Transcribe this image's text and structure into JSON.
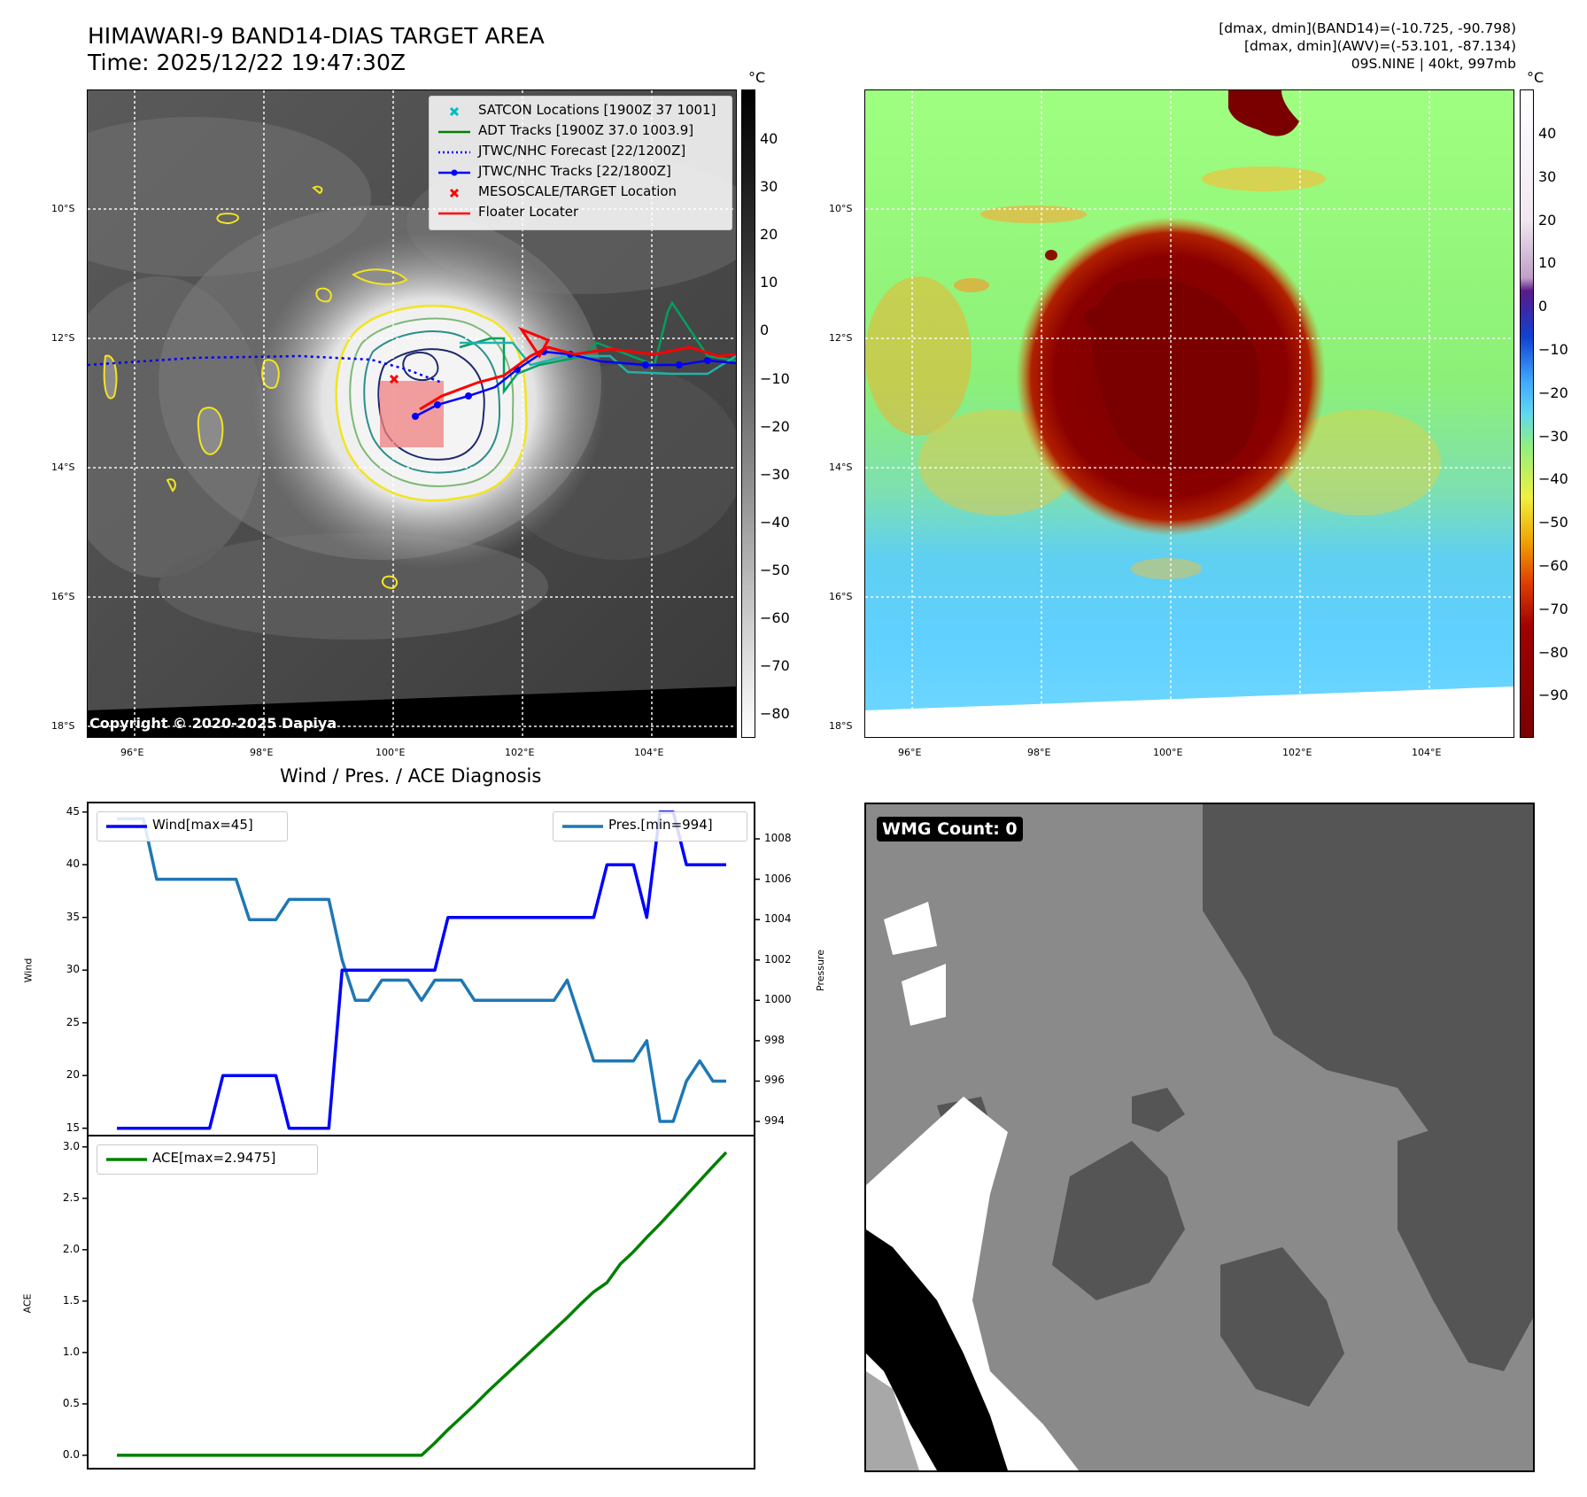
{
  "header": {
    "title_line1": "HIMAWARI-9 BAND14-DIAS TARGET AREA",
    "title_line2": "Time: 2025/12/22 19:47:30Z",
    "info_line1": "[dmax, dmin](BAND14)=(-10.725, -90.798)",
    "info_line2": "[dmax, dmin](AWV)=(-53.101, -87.134)",
    "info_line3": "09S.NINE | 40kt, 997mb"
  },
  "map_common": {
    "lat_labels": [
      "10°S",
      "12°S",
      "14°S",
      "16°S",
      "18°S"
    ],
    "lon_labels": [
      "96°E",
      "98°E",
      "100°E",
      "102°E",
      "104°E"
    ],
    "unit": "°C"
  },
  "ir_panel": {
    "copyright": "Copyright © 2020-2025 Dapiya",
    "colorbar_ticks": [
      "40",
      "30",
      "20",
      "10",
      "0",
      "−10",
      "−20",
      "−30",
      "−40",
      "−50",
      "−60",
      "−70",
      "−80"
    ],
    "legend": [
      {
        "label": "SATCON Locations [1900Z 37 1001]",
        "color": "#00bcbc",
        "marker": "x"
      },
      {
        "label": "ADT Tracks [1900Z 37.0 1003.9]",
        "color": "#008000",
        "marker": "line"
      },
      {
        "label": "JTWC/NHC Forecast [22/1200Z]",
        "color": "#0000ff",
        "marker": "dotted"
      },
      {
        "label": "JTWC/NHC Tracks [22/1800Z]",
        "color": "#0000ff",
        "marker": "line-dot"
      },
      {
        "label": "MESOSCALE/TARGET Location",
        "color": "#ff0000",
        "marker": "x"
      },
      {
        "label": "Floater Locater",
        "color": "#ff0000",
        "marker": "line"
      }
    ]
  },
  "wv_panel": {
    "colorbar_ticks": [
      "40",
      "30",
      "20",
      "10",
      "0",
      "−10",
      "−20",
      "−30",
      "−40",
      "−50",
      "−60",
      "−70",
      "−80",
      "−90"
    ]
  },
  "wmg_panel": {
    "label": "WMG Count: 0"
  },
  "colors": {
    "wind": "#0000ff",
    "pressure": "#1f77b4",
    "ace": "#008000"
  },
  "chart_data": [
    {
      "type": "line",
      "title": "Wind / Pres. / ACE Diagnosis",
      "ylabel": "Wind",
      "y2label": "Pressure",
      "ylim": [
        14.3,
        45.9
      ],
      "y2lim": [
        993.3,
        1009.8
      ],
      "yticks": [
        "15",
        "20",
        "25",
        "30",
        "35",
        "40",
        "45"
      ],
      "y2ticks": [
        "994",
        "996",
        "998",
        "1000",
        "1002",
        "1004",
        "1006",
        "1008"
      ],
      "x": [
        0,
        1,
        2,
        3,
        4,
        5,
        6,
        7,
        8,
        9,
        10,
        11,
        12,
        13,
        14,
        15,
        16,
        17,
        18,
        19,
        20,
        21,
        22,
        23,
        24,
        25,
        26,
        27,
        28,
        29,
        30,
        31,
        32,
        33,
        34,
        35,
        36,
        37,
        38,
        39,
        40,
        41,
        42,
        43,
        44,
        45,
        46
      ],
      "series": [
        {
          "name": "Wind[max=45]",
          "axis": "left",
          "color": "#0000ff",
          "values": [
            15,
            15,
            15,
            15,
            15,
            15,
            15,
            15,
            20,
            20,
            20,
            20,
            20,
            15,
            15,
            15,
            15,
            30,
            30,
            30,
            30,
            30,
            30,
            30,
            30,
            35,
            35,
            35,
            35,
            35,
            35,
            35,
            35,
            35,
            35,
            35,
            35,
            40,
            40,
            40,
            35,
            45,
            45,
            40,
            40,
            40,
            40
          ]
        },
        {
          "name": "Pres.[min=994]",
          "axis": "right",
          "color": "#1f77b4",
          "values": [
            1009,
            1009,
            1009,
            1006,
            1006,
            1006,
            1006,
            1006,
            1006,
            1006,
            1004,
            1004,
            1004,
            1005,
            1005,
            1005,
            1005,
            1002,
            1000,
            1000,
            1001,
            1001,
            1001,
            1000,
            1001,
            1001,
            1001,
            1000,
            1000,
            1000,
            1000,
            1000,
            1000,
            1000,
            1001,
            999,
            997,
            997,
            997,
            997,
            998,
            994,
            994,
            996,
            997,
            996,
            996
          ]
        },
        {
          "name": "ACE[max=2.9475]",
          "axis": "ace",
          "color": "#008000",
          "values": [
            0,
            0,
            0,
            0,
            0,
            0,
            0,
            0,
            0,
            0,
            0,
            0,
            0,
            0,
            0,
            0,
            0,
            0,
            0,
            0,
            0,
            0,
            0,
            0,
            0.12,
            0.25,
            0.37,
            0.49,
            0.62,
            0.74,
            0.86,
            0.98,
            1.1,
            1.22,
            1.34,
            1.47,
            1.59,
            1.68,
            1.86,
            1.98,
            2.12,
            2.25,
            2.39,
            2.53,
            2.67,
            2.81,
            2.9475
          ]
        }
      ],
      "ace_ylabel": "ACE",
      "ace_ylim": [
        -0.13,
        3.11
      ],
      "ace_yticks": [
        "0.0",
        "0.5",
        "1.0",
        "1.5",
        "2.0",
        "2.5",
        "3.0"
      ]
    }
  ]
}
